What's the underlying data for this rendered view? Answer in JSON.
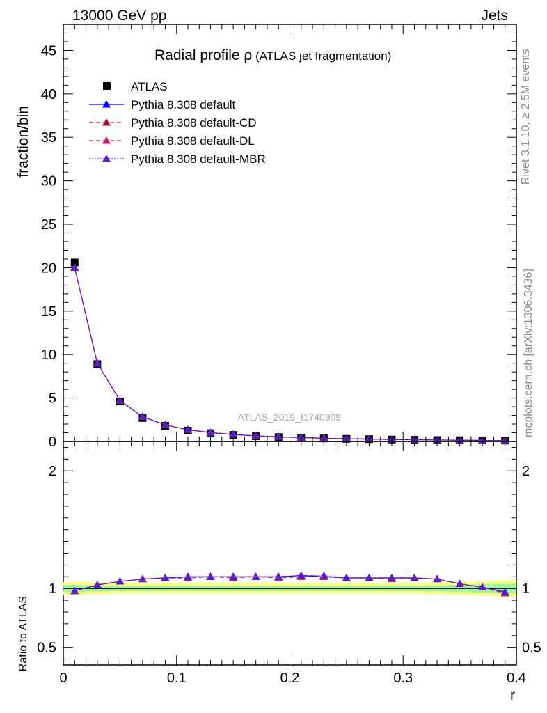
{
  "header": {
    "left": "13000 GeV pp",
    "right": "Jets"
  },
  "title": {
    "main": "Radial profile ",
    "symbol": "ρ",
    "sub": " (ATLAS jet fragmentation)"
  },
  "side_labels": {
    "rivet": "Rivet 3.1.10, ≥ 2.5M events",
    "mcplots": "mcplots.cern.ch [arXiv:1306.3436]"
  },
  "analysis_tag": "ATLAS_2019_I1740909",
  "legend": [
    {
      "label": "ATLAS",
      "color": "#000000",
      "marker": "square",
      "dash": ""
    },
    {
      "label": "Pythia 8.308 default",
      "color": "#0000ff",
      "marker": "triangle",
      "dash": ""
    },
    {
      "label": "Pythia 8.308 default-CD",
      "color": "#a0153e",
      "marker": "triangle",
      "dash": "6,4"
    },
    {
      "label": "Pythia 8.308 default-DL",
      "color": "#bf1f6e",
      "marker": "triangle",
      "dash": "6,4"
    },
    {
      "label": "Pythia 8.308 default-MBR",
      "color": "#5a1fbf",
      "marker": "triangle",
      "dash": "2,2"
    }
  ],
  "chart_data": [
    {
      "type": "scatter",
      "panel": "main",
      "ylabel": "fraction/bin",
      "xlim": [
        0,
        0.4
      ],
      "ylim": [
        0,
        48
      ],
      "yticks": [
        0,
        5,
        10,
        15,
        20,
        25,
        30,
        35,
        40,
        45
      ],
      "x": [
        0.01,
        0.03,
        0.05,
        0.07,
        0.09,
        0.11,
        0.13,
        0.15,
        0.17,
        0.19,
        0.21,
        0.23,
        0.25,
        0.27,
        0.29,
        0.31,
        0.33,
        0.35,
        0.37,
        0.39
      ],
      "series": [
        {
          "name": "ATLAS",
          "values": [
            20.6,
            8.9,
            4.6,
            2.7,
            1.8,
            1.25,
            0.95,
            0.75,
            0.6,
            0.5,
            0.42,
            0.35,
            0.3,
            0.26,
            0.22,
            0.19,
            0.16,
            0.14,
            0.12,
            0.1
          ]
        },
        {
          "name": "Pythia 8.308 default",
          "values": [
            20.0,
            9.0,
            4.7,
            2.85,
            1.9,
            1.35,
            1.02,
            0.8,
            0.64,
            0.53,
            0.45,
            0.37,
            0.31,
            0.27,
            0.23,
            0.2,
            0.17,
            0.14,
            0.12,
            0.1
          ]
        },
        {
          "name": "Pythia 8.308 default-CD",
          "values": [
            20.0,
            9.0,
            4.7,
            2.85,
            1.9,
            1.35,
            1.02,
            0.8,
            0.64,
            0.53,
            0.45,
            0.37,
            0.31,
            0.27,
            0.23,
            0.2,
            0.17,
            0.14,
            0.12,
            0.1
          ]
        },
        {
          "name": "Pythia 8.308 default-DL",
          "values": [
            20.0,
            9.0,
            4.7,
            2.85,
            1.9,
            1.35,
            1.02,
            0.8,
            0.64,
            0.53,
            0.45,
            0.37,
            0.31,
            0.27,
            0.23,
            0.2,
            0.17,
            0.14,
            0.12,
            0.1
          ]
        },
        {
          "name": "Pythia 8.308 default-MBR",
          "values": [
            20.0,
            9.0,
            4.7,
            2.85,
            1.9,
            1.35,
            1.02,
            0.8,
            0.64,
            0.53,
            0.45,
            0.37,
            0.31,
            0.27,
            0.23,
            0.2,
            0.17,
            0.14,
            0.12,
            0.1
          ]
        }
      ]
    },
    {
      "type": "scatter",
      "panel": "ratio",
      "ylabel": "Ratio to ATLAS",
      "xlabel": "r",
      "xlim": [
        0,
        0.4
      ],
      "ylim": [
        0.35,
        2.25
      ],
      "yticks": [
        0.5,
        1,
        2
      ],
      "xticks": [
        0,
        0.1,
        0.2,
        0.3,
        0.4
      ],
      "x": [
        0.01,
        0.03,
        0.05,
        0.07,
        0.09,
        0.11,
        0.13,
        0.15,
        0.17,
        0.19,
        0.21,
        0.23,
        0.25,
        0.27,
        0.29,
        0.31,
        0.33,
        0.35,
        0.37,
        0.39
      ],
      "band_yellow": [
        0.055,
        0.05,
        0.045,
        0.045,
        0.045,
        0.045,
        0.045,
        0.045,
        0.045,
        0.045,
        0.045,
        0.045,
        0.045,
        0.045,
        0.045,
        0.045,
        0.05,
        0.055,
        0.06,
        0.07
      ],
      "band_green": [
        0.03,
        0.025,
        0.022,
        0.022,
        0.022,
        0.022,
        0.022,
        0.022,
        0.022,
        0.022,
        0.022,
        0.022,
        0.022,
        0.022,
        0.022,
        0.022,
        0.025,
        0.03,
        0.035,
        0.04
      ],
      "series": [
        {
          "name": "Pythia 8.308 default",
          "values": [
            0.98,
            1.03,
            1.06,
            1.08,
            1.09,
            1.1,
            1.1,
            1.1,
            1.1,
            1.1,
            1.11,
            1.1,
            1.09,
            1.09,
            1.09,
            1.09,
            1.08,
            1.04,
            1.01,
            0.97
          ]
        },
        {
          "name": "Pythia 8.308 default-CD",
          "values": [
            0.98,
            1.03,
            1.06,
            1.08,
            1.09,
            1.09,
            1.1,
            1.1,
            1.1,
            1.09,
            1.1,
            1.1,
            1.09,
            1.09,
            1.09,
            1.09,
            1.08,
            1.04,
            1.01,
            0.96
          ]
        },
        {
          "name": "Pythia 8.308 default-DL",
          "values": [
            0.98,
            1.03,
            1.06,
            1.08,
            1.09,
            1.09,
            1.1,
            1.09,
            1.1,
            1.09,
            1.1,
            1.1,
            1.09,
            1.09,
            1.08,
            1.09,
            1.08,
            1.04,
            1.01,
            0.96
          ]
        },
        {
          "name": "Pythia 8.308 default-MBR",
          "values": [
            0.98,
            1.03,
            1.06,
            1.08,
            1.09,
            1.1,
            1.1,
            1.1,
            1.1,
            1.1,
            1.11,
            1.11,
            1.09,
            1.09,
            1.09,
            1.09,
            1.08,
            1.04,
            1.01,
            0.97
          ]
        }
      ]
    }
  ]
}
